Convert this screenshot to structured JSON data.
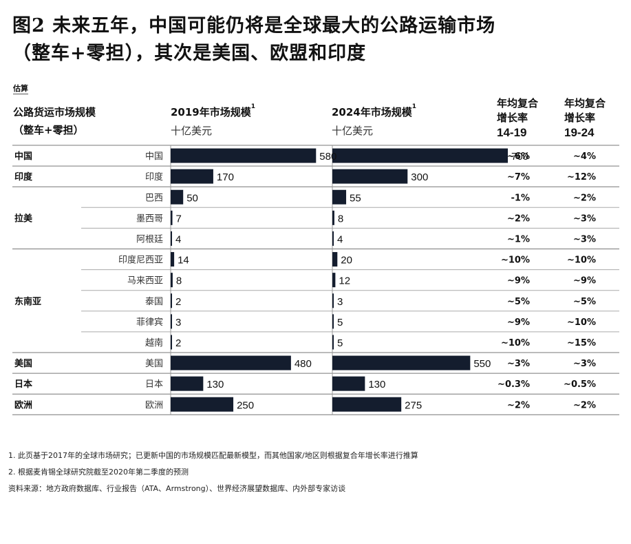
{
  "title": {
    "line1": "图2 未来五年，中国可能仍将是全球最大的公路运输市场",
    "line2": "（整车+零担），其次是美国、欧盟和印度"
  },
  "estimate_label": "估算",
  "headers": {
    "market_line1": "公路货运市场规模",
    "market_line2": "（整车+零担）",
    "col2019": "2019年市场规模",
    "col2019_sup": "1",
    "col2024": "2024年市场规模",
    "col2024_sup": "1",
    "unit2019": "十亿美元",
    "unit2024": "十亿美元",
    "cagr1_line1": "年均复合",
    "cagr1_line2": "增长率",
    "cagr1_years": "14-19",
    "cagr2_line1": "年均复合",
    "cagr2_line2": "增长率",
    "cagr2_years": "19-24"
  },
  "chart_data": {
    "type": "bar",
    "orientation": "horizontal",
    "regions": [
      "中国",
      "印度",
      "拉美",
      "东南亚",
      "美国",
      "日本",
      "欧洲"
    ],
    "categories": [
      "中国",
      "印度",
      "巴西",
      "墨西哥",
      "阿根廷",
      "印度尼西亚",
      "马来西亚",
      "泰国",
      "菲律宾",
      "越南",
      "美国",
      "日本",
      "欧洲"
    ],
    "row_region": [
      "中国",
      "印度",
      "拉美",
      "拉美",
      "拉美",
      "东南亚",
      "东南亚",
      "东南亚",
      "东南亚",
      "东南亚",
      "美国",
      "日本",
      "欧洲"
    ],
    "series": [
      {
        "name": "2019年市场规模",
        "values": [
          580,
          170,
          50,
          7,
          4,
          14,
          8,
          2,
          3,
          2,
          480,
          130,
          250
        ]
      },
      {
        "name": "2024年市场规模",
        "values": [
          700,
          300,
          55,
          8,
          4,
          20,
          12,
          3,
          5,
          5,
          550,
          130,
          275
        ]
      }
    ],
    "cagr_14_19": [
      "~6%",
      "~7%",
      "-1%",
      "~2%",
      "~1%",
      "~10%",
      "~9%",
      "~5%",
      "~9%",
      "~10%",
      "~3%",
      "~0.3%",
      "~2%"
    ],
    "cagr_19_24": [
      "~4%",
      "~12%",
      "~2%",
      "~3%",
      "~3%",
      "~10%",
      "~9%",
      "~5%",
      "~10%",
      "~15%",
      "~3%",
      "~0.5%",
      "~2%"
    ],
    "bar_color": "#141d2e",
    "xlim": [
      0,
      700
    ]
  },
  "notes": [
    "1. 此页基于2017年的全球市场研究；已更新中国的市场规模匹配最新模型，而其他国家/地区则根据复合年增长率进行推算",
    "2. 根据麦肯锡全球研究院截至2020年第二季度的预测",
    "资料来源：地方政府数据库、行业报告（ATA、Armstrong）、世界经济展望数据库、内外部专家访谈"
  ]
}
